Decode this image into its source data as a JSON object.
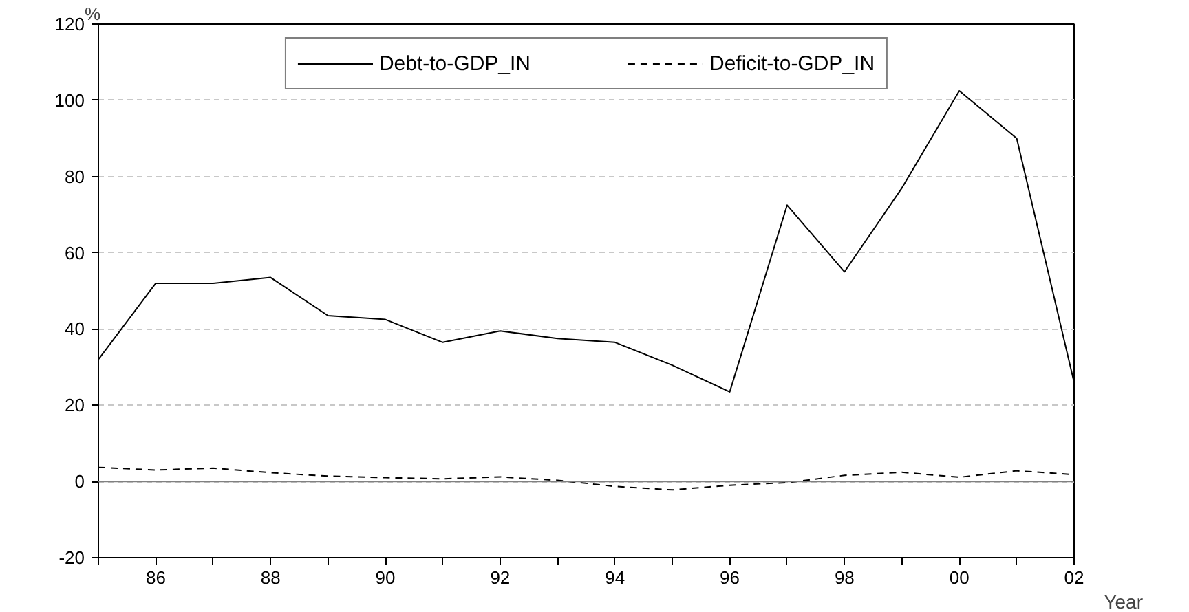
{
  "chart_data": {
    "type": "line",
    "xlabel": "Year",
    "ylabel": "%",
    "x": [
      1985,
      1986,
      1987,
      1988,
      1989,
      1990,
      1991,
      1992,
      1993,
      1994,
      1995,
      1996,
      1997,
      1998,
      1999,
      2000,
      2001,
      2002
    ],
    "series": [
      {
        "name": "Debt-to-GDP_IN",
        "color": "#000000",
        "line_style": "solid",
        "values": [
          32,
          52,
          52,
          53.5,
          43.5,
          42.5,
          36.5,
          39.5,
          37.5,
          36.5,
          30.5,
          23.5,
          72.5,
          55,
          77,
          102.5,
          90,
          26
        ]
      },
      {
        "name": "Deficit-to-GDP_IN",
        "color": "#000000",
        "line_style": "dashed",
        "values": [
          3.7,
          3,
          3.5,
          2.3,
          1.4,
          1,
          0.7,
          1.2,
          0.3,
          -1.3,
          -2.2,
          -1,
          -0.3,
          1.6,
          2.4,
          1.1,
          2.8,
          1.8
        ]
      }
    ],
    "xlim": [
      1985,
      2002
    ],
    "xticks": [
      {
        "value": 1985,
        "label": null
      },
      {
        "value": 1986,
        "label": "86"
      },
      {
        "value": 1987,
        "label": null
      },
      {
        "value": 1988,
        "label": "88"
      },
      {
        "value": 1989,
        "label": null
      },
      {
        "value": 1990,
        "label": "90"
      },
      {
        "value": 1991,
        "label": null
      },
      {
        "value": 1992,
        "label": "92"
      },
      {
        "value": 1993,
        "label": null
      },
      {
        "value": 1994,
        "label": "94"
      },
      {
        "value": 1995,
        "label": null
      },
      {
        "value": 1996,
        "label": "96"
      },
      {
        "value": 1997,
        "label": null
      },
      {
        "value": 1998,
        "label": "98"
      },
      {
        "value": 1999,
        "label": null
      },
      {
        "value": 2000,
        "label": "00"
      },
      {
        "value": 2001,
        "label": null
      },
      {
        "value": 2002,
        "label": "02"
      }
    ],
    "ylim": [
      -20,
      120
    ],
    "yticks": [
      -20,
      0,
      20,
      40,
      60,
      80,
      100,
      120
    ],
    "ref_lines": [
      {
        "axis": "y",
        "value": 0,
        "label": null,
        "color": "#808080",
        "line_style": "solid"
      }
    ],
    "grid": "y",
    "legend": "top"
  }
}
